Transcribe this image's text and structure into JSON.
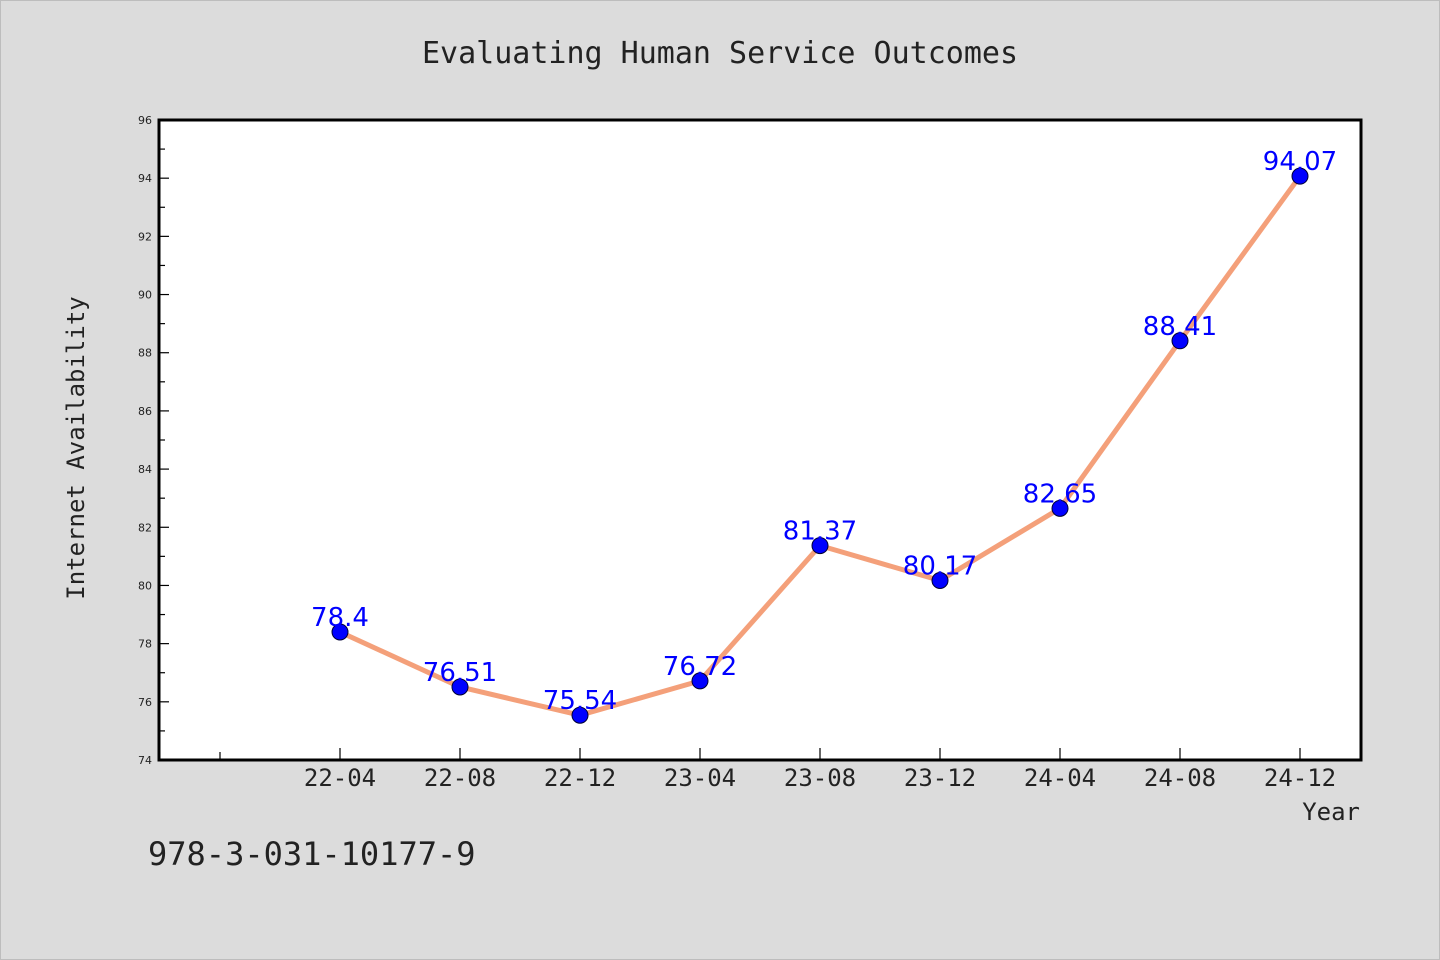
{
  "chart_data": {
    "type": "line",
    "title": "Evaluating Human Service Outcomes",
    "xlabel": "Year",
    "ylabel": "Internet Availability",
    "categories": [
      "22-04",
      "22-08",
      "22-12",
      "23-04",
      "23-08",
      "23-12",
      "24-04",
      "24-08",
      "24-12"
    ],
    "series": [
      {
        "values": [
          78.4,
          76.51,
          75.54,
          76.72,
          81.37,
          80.17,
          82.65,
          88.41,
          94.07
        ]
      }
    ],
    "data_labels": [
      "78.4",
      "76.51",
      "75.54",
      "76.72",
      "81.37",
      "80.17",
      "82.65",
      "88.41",
      "94.07"
    ],
    "ylim": [
      74,
      96
    ],
    "yticks": [
      "74",
      "76",
      "78",
      "80",
      "82",
      "84",
      "86",
      "88",
      "90",
      "92",
      "94",
      "96"
    ],
    "grid": false,
    "line_color": "#f4a07a",
    "marker_color": "#0000ff",
    "label_color": "#0000ff",
    "footer_text": "978-3-031-10177-9"
  }
}
